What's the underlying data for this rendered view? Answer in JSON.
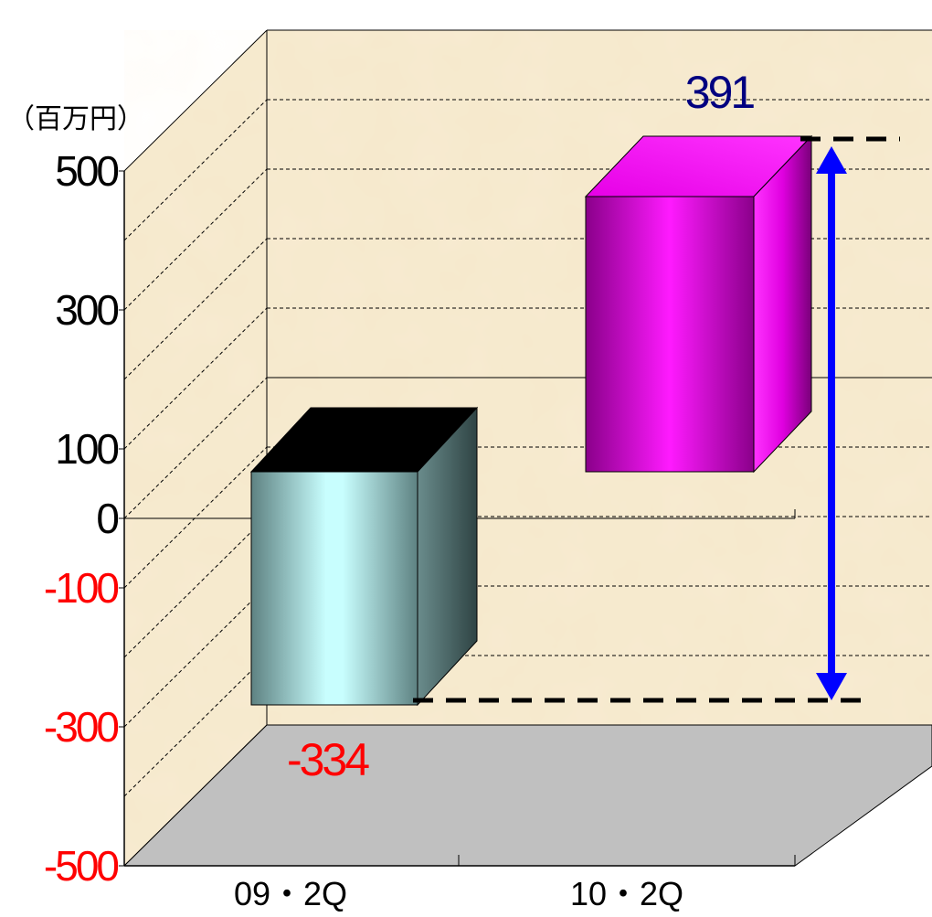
{
  "chart_data": {
    "type": "bar",
    "unit_label": "（百万円）",
    "categories": [
      "09・2Q",
      "10・2Q"
    ],
    "values": [
      -334,
      391
    ],
    "value_labels": [
      "-334",
      "391"
    ],
    "y_ticks": [
      500,
      300,
      100,
      0,
      -100,
      -300,
      -500
    ],
    "y_tick_labels": [
      "500",
      "300",
      "100",
      "0",
      "-100",
      "-300",
      "-500"
    ],
    "ylim": [
      -500,
      500
    ],
    "grid": true,
    "legend": "none",
    "annotation": "double-headed arrow spanning the difference between the two bar values",
    "colors": {
      "bar_1_front": "#c8fefe",
      "bar_1_top": "#000000",
      "bar_1_side": "#5a7878",
      "bar_2_front": "#ff00ff",
      "bar_2_top": "#ff00ff",
      "bar_2_side": "#cc00cc",
      "positive_label": "#000000",
      "negative_label": "#ff0000",
      "value_label_positive": "#000080",
      "value_label_negative": "#ff0000",
      "arrow": "#0000ff",
      "wall": "#f7ebd1",
      "floor": "#c0c0c0"
    }
  }
}
